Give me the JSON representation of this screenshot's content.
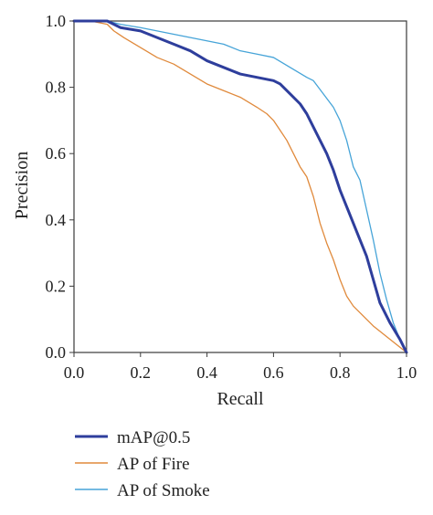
{
  "chart_data": {
    "type": "line",
    "xlabel": "Recall",
    "ylabel": "Precision",
    "xlim": [
      0.0,
      1.0
    ],
    "ylim": [
      0.0,
      1.0
    ],
    "x_ticks": [
      "0.0",
      "0.2",
      "0.4",
      "0.6",
      "0.8",
      "1.0"
    ],
    "y_ticks": [
      "0.0",
      "0.2",
      "0.4",
      "0.6",
      "0.8",
      "1.0"
    ],
    "grid": false,
    "legend_position": "bottom-left, below plot",
    "series": [
      {
        "name": "mAP@0.5",
        "color": "#2e3e9c",
        "x": [
          0.0,
          0.05,
          0.1,
          0.12,
          0.14,
          0.2,
          0.25,
          0.3,
          0.35,
          0.4,
          0.45,
          0.5,
          0.55,
          0.6,
          0.62,
          0.65,
          0.68,
          0.7,
          0.72,
          0.74,
          0.76,
          0.78,
          0.8,
          0.82,
          0.84,
          0.86,
          0.88,
          0.9,
          0.92,
          0.95,
          0.98,
          1.0
        ],
        "y": [
          1.0,
          1.0,
          1.0,
          0.99,
          0.98,
          0.97,
          0.95,
          0.93,
          0.91,
          0.88,
          0.86,
          0.84,
          0.83,
          0.82,
          0.81,
          0.78,
          0.75,
          0.72,
          0.68,
          0.64,
          0.6,
          0.55,
          0.49,
          0.44,
          0.39,
          0.34,
          0.29,
          0.22,
          0.15,
          0.09,
          0.04,
          0.0
        ]
      },
      {
        "name": "AP of Fire",
        "color": "#e08a3c",
        "x": [
          0.0,
          0.05,
          0.1,
          0.12,
          0.15,
          0.2,
          0.25,
          0.3,
          0.35,
          0.4,
          0.45,
          0.5,
          0.55,
          0.58,
          0.6,
          0.62,
          0.64,
          0.66,
          0.68,
          0.7,
          0.72,
          0.74,
          0.76,
          0.78,
          0.8,
          0.82,
          0.84,
          0.86,
          0.88,
          0.9,
          0.95,
          1.0
        ],
        "y": [
          1.0,
          1.0,
          0.99,
          0.97,
          0.95,
          0.92,
          0.89,
          0.87,
          0.84,
          0.81,
          0.79,
          0.77,
          0.74,
          0.72,
          0.7,
          0.67,
          0.64,
          0.6,
          0.56,
          0.53,
          0.47,
          0.39,
          0.33,
          0.28,
          0.22,
          0.17,
          0.14,
          0.12,
          0.1,
          0.08,
          0.04,
          0.0
        ]
      },
      {
        "name": "AP of Smoke",
        "color": "#46a4d8",
        "x": [
          0.0,
          0.05,
          0.1,
          0.14,
          0.2,
          0.25,
          0.3,
          0.35,
          0.4,
          0.45,
          0.5,
          0.55,
          0.6,
          0.65,
          0.7,
          0.72,
          0.75,
          0.78,
          0.8,
          0.82,
          0.84,
          0.86,
          0.88,
          0.9,
          0.92,
          0.94,
          0.96,
          0.98,
          1.0
        ],
        "y": [
          1.0,
          1.0,
          1.0,
          0.99,
          0.98,
          0.97,
          0.96,
          0.95,
          0.94,
          0.93,
          0.91,
          0.9,
          0.89,
          0.86,
          0.83,
          0.82,
          0.78,
          0.74,
          0.7,
          0.64,
          0.56,
          0.52,
          0.43,
          0.34,
          0.24,
          0.16,
          0.09,
          0.04,
          0.0
        ]
      }
    ]
  }
}
